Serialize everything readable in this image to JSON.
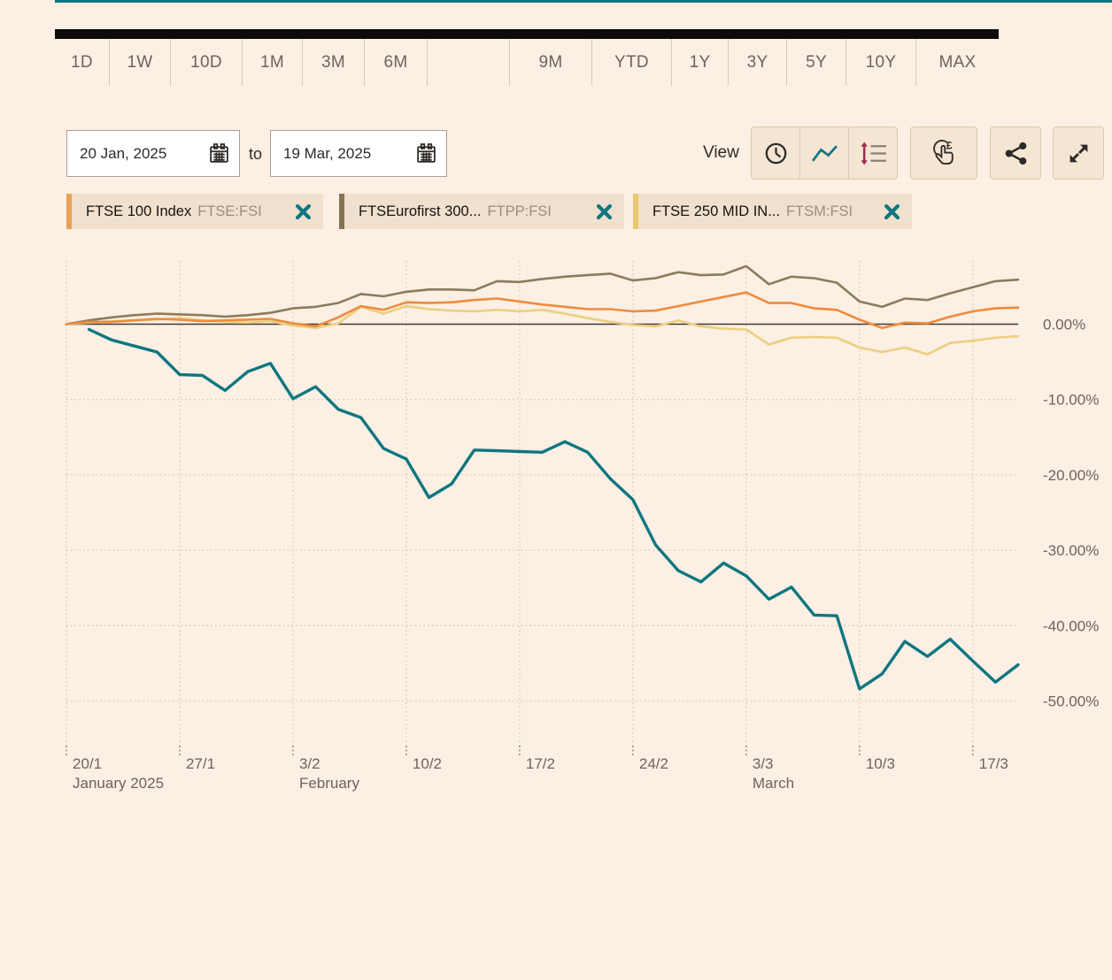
{
  "page": {
    "background_color": "#FCEFE3",
    "accent_color": "#0D7680"
  },
  "range_selector": {
    "options": [
      "1D",
      "1W",
      "10D",
      "1M",
      "3M",
      "6M",
      "9M",
      "YTD",
      "1Y",
      "3Y",
      "5Y",
      "10Y",
      "MAX"
    ],
    "selected": null
  },
  "date_controls": {
    "from": "20 Jan, 2025",
    "to_label": "to",
    "to": "19 Mar, 2025",
    "calendar_icon": "calendar-icon"
  },
  "view_controls": {
    "label": "View",
    "grouped_buttons": [
      {
        "icon": "clock-icon",
        "color": "#2E2B28"
      },
      {
        "icon": "line-chart-icon",
        "color": "#0D7680"
      },
      {
        "icon": "compare-arrows-icon",
        "color": "#9B2D50"
      }
    ],
    "buttons": [
      {
        "icon": "interactive-pound-icon",
        "color": "#2E2B28"
      },
      {
        "icon": "share-icon",
        "color": "#2B2A28"
      },
      {
        "icon": "expand-icon",
        "color": "#2B2A28"
      }
    ]
  },
  "legend_chips": [
    {
      "label": "FTSE 100 Index",
      "symbol": "FTSE:FSI",
      "bar_color": "#ECA156",
      "close_icon": "close-x-icon",
      "close_color": "#0D7680"
    },
    {
      "label": "FTSEurofirst 300...",
      "symbol": "FTPP:FSI",
      "bar_color": "#857454",
      "close_icon": "close-x-icon",
      "close_color": "#0D7680"
    },
    {
      "label": "FTSE 250 MID IN...",
      "symbol": "FTSM:FSI",
      "bar_color": "#E7C96F",
      "close_icon": "close-x-icon",
      "close_color": "#0D7680"
    }
  ],
  "chart_data": {
    "type": "line",
    "unit": "percent_change",
    "grid": "dotted",
    "y_axis_side": "right",
    "zero_line": true,
    "ylim": [
      -56,
      8.4
    ],
    "x_dates": [
      "20/1",
      "21/1",
      "22/1",
      "23/1",
      "24/1",
      "27/1",
      "28/1",
      "29/1",
      "30/1",
      "31/1",
      "3/2",
      "4/2",
      "5/2",
      "6/2",
      "7/2",
      "10/2",
      "11/2",
      "12/2",
      "13/2",
      "14/2",
      "17/2",
      "18/2",
      "19/2",
      "20/2",
      "21/2",
      "24/2",
      "25/2",
      "26/2",
      "27/2",
      "28/2",
      "3/3",
      "4/3",
      "5/3",
      "6/3",
      "7/3",
      "10/3",
      "11/3",
      "12/3",
      "13/3",
      "14/3",
      "17/3",
      "18/3",
      "19/3"
    ],
    "x_ticks": [
      {
        "i": 0,
        "label": "20/1",
        "month": "January 2025"
      },
      {
        "i": 5,
        "label": "27/1"
      },
      {
        "i": 10,
        "label": "3/2",
        "month": "February"
      },
      {
        "i": 15,
        "label": "10/2"
      },
      {
        "i": 20,
        "label": "17/2"
      },
      {
        "i": 25,
        "label": "24/2"
      },
      {
        "i": 30,
        "label": "3/3",
        "month": "March"
      },
      {
        "i": 35,
        "label": "10/3"
      },
      {
        "i": 40,
        "label": "17/3"
      }
    ],
    "y_ticks": [
      {
        "v": 0,
        "label": "0.00%"
      },
      {
        "v": -10,
        "label": "-10.00%"
      },
      {
        "v": -20,
        "label": "-20.00%"
      },
      {
        "v": -30,
        "label": "-30.00%"
      },
      {
        "v": -40,
        "label": "-40.00%"
      },
      {
        "v": -50,
        "label": "-50.00%"
      }
    ],
    "series": [
      {
        "id": "main",
        "label": null,
        "color": "#0D7680",
        "values": [
          null,
          -0.7,
          -2.1,
          -2.9,
          -3.7,
          -6.7,
          -6.8,
          -8.8,
          -6.3,
          -5.2,
          -9.9,
          -8.3,
          -11.3,
          -12.4,
          -16.5,
          -17.9,
          -23.0,
          -21.2,
          -16.7,
          -16.8,
          -16.9,
          -17.0,
          -15.6,
          -17.0,
          -20.5,
          -23.3,
          -29.3,
          -32.7,
          -34.2,
          -31.7,
          -33.4,
          -36.5,
          -34.9,
          -38.6,
          -38.7,
          -48.4,
          -46.4,
          -42.1,
          -44.1,
          -41.8,
          -44.7,
          -47.5,
          -45.2
        ]
      },
      {
        "id": "ftse100",
        "label": "FTSE 100 Index",
        "symbol": "FTSE:FSI",
        "color": "#EE8B3E",
        "values": [
          0,
          0.3,
          0.3,
          0.5,
          0.7,
          0.6,
          0.4,
          0.5,
          0.6,
          0.7,
          0.1,
          -0.3,
          0.9,
          2.4,
          1.9,
          2.9,
          2.8,
          2.9,
          3.2,
          3.4,
          3.0,
          2.6,
          2.3,
          2.0,
          2.0,
          1.7,
          1.8,
          2.4,
          3.0,
          3.6,
          4.2,
          2.8,
          2.8,
          2.1,
          1.9,
          0.6,
          -0.5,
          0.2,
          0.1,
          1.0,
          1.7,
          2.1,
          2.2
        ]
      },
      {
        "id": "ftseurofirst300",
        "label": "FTSEurofirst 300...",
        "symbol": "FTPP:FSI",
        "color": "#8A7C5C",
        "values": [
          0,
          0.5,
          0.9,
          1.2,
          1.4,
          1.3,
          1.2,
          1.0,
          1.2,
          1.5,
          2.1,
          2.3,
          2.8,
          4.0,
          3.7,
          4.3,
          4.6,
          4.6,
          4.5,
          5.7,
          5.6,
          6.0,
          6.3,
          6.5,
          6.7,
          5.8,
          6.1,
          6.9,
          6.5,
          6.6,
          7.7,
          5.3,
          6.3,
          6.1,
          5.5,
          3.0,
          2.3,
          3.4,
          3.2,
          4.1,
          4.9,
          5.7,
          5.9
        ]
      },
      {
        "id": "ftse250mid",
        "label": "FTSE 250 MID IN...",
        "symbol": "FTSM:FSI",
        "color": "#EBCF7E",
        "values": [
          0,
          0.2,
          0.4,
          0.5,
          0.6,
          0.8,
          0.5,
          0.3,
          0.2,
          0.4,
          -0.2,
          -0.5,
          0.1,
          2.3,
          1.4,
          2.4,
          2.0,
          1.8,
          1.7,
          1.9,
          1.7,
          1.9,
          1.4,
          0.8,
          0.3,
          -0.1,
          -0.3,
          0.5,
          -0.3,
          -0.6,
          -0.7,
          -2.7,
          -1.8,
          -1.7,
          -1.8,
          -3.1,
          -3.7,
          -3.1,
          -4.0,
          -2.5,
          -2.2,
          -1.8,
          -1.6
        ]
      }
    ]
  }
}
